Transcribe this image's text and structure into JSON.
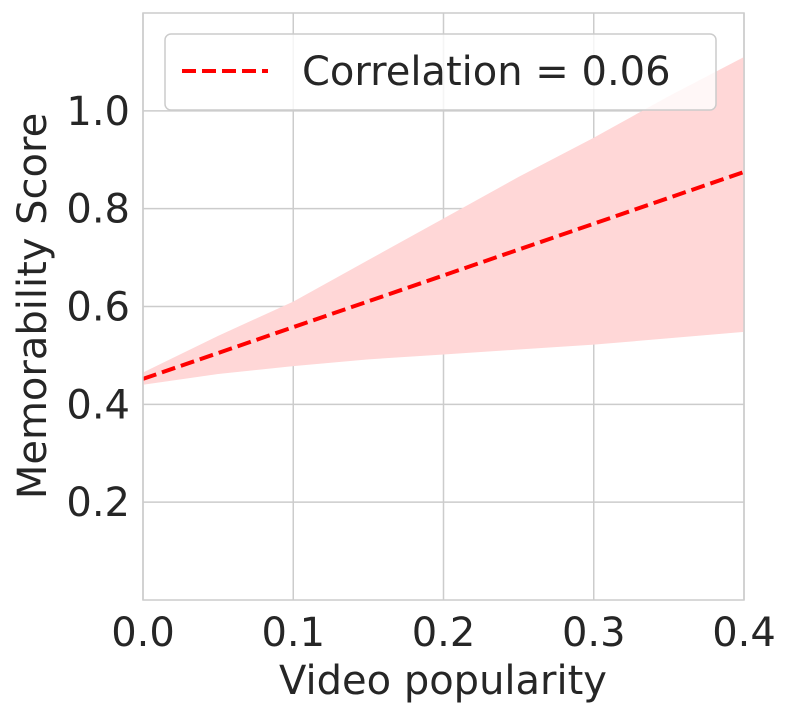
{
  "chart_data": {
    "type": "line",
    "xlabel": "Video popularity",
    "ylabel": "Memorability Score",
    "xlim": [
      0.0,
      0.4
    ],
    "ylim": [
      0.0,
      1.2
    ],
    "x_ticks": [
      "0.0",
      "0.1",
      "0.2",
      "0.3",
      "0.4"
    ],
    "y_ticks": [
      "0.2",
      "0.4",
      "0.6",
      "0.8",
      "1.0"
    ],
    "grid": true,
    "legend_position": "top-right",
    "series": [
      {
        "name": "Correlation = 0.06",
        "style": "dashed",
        "color": "#ff0000",
        "x": [
          0.0,
          0.4
        ],
        "y": [
          0.452,
          0.875
        ],
        "ci_color": "#ffd7d7",
        "ci_x": [
          0.0,
          0.05,
          0.1,
          0.15,
          0.2,
          0.25,
          0.3,
          0.35,
          0.4
        ],
        "ci_upper": [
          0.465,
          0.54,
          0.61,
          0.695,
          0.78,
          0.865,
          0.945,
          1.03,
          1.11
        ],
        "ci_lower": [
          0.44,
          0.462,
          0.478,
          0.492,
          0.502,
          0.512,
          0.522,
          0.535,
          0.548
        ]
      }
    ]
  }
}
